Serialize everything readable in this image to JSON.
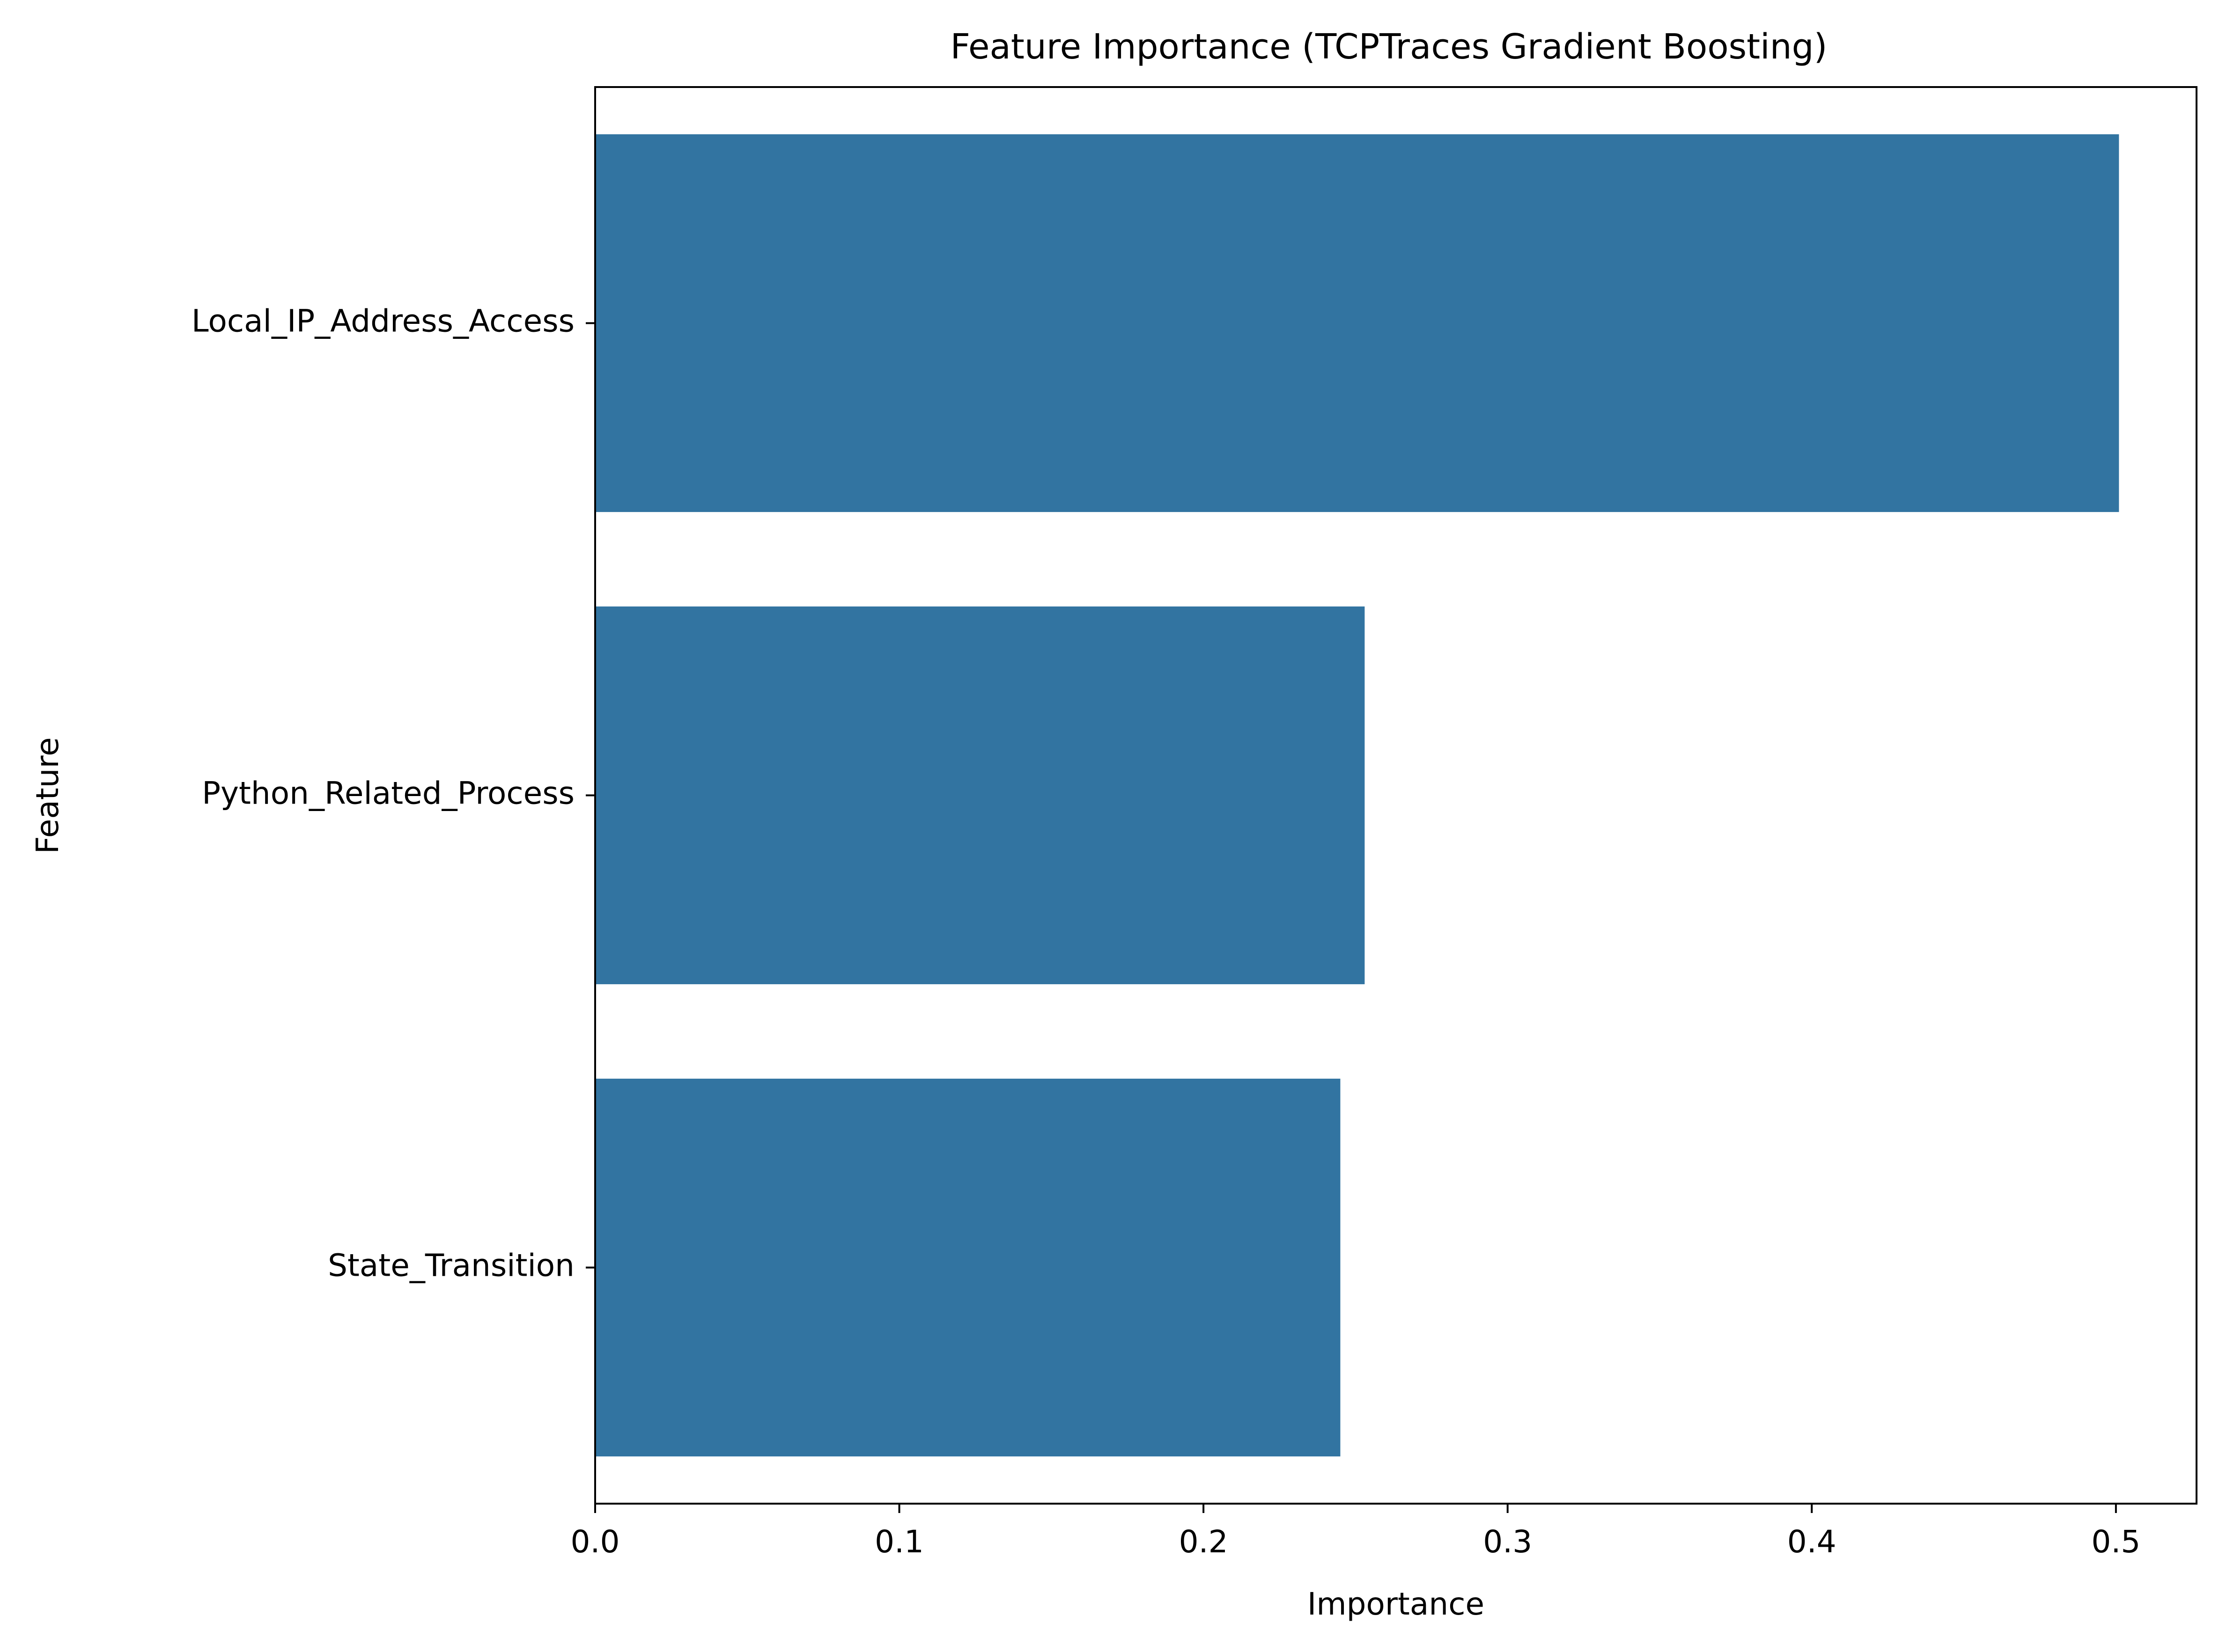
{
  "chart_data": {
    "type": "bar",
    "orientation": "horizontal",
    "title": "Feature Importance (TCPTraces Gradient Boosting)",
    "xlabel": "Importance",
    "ylabel": "Feature",
    "categories": [
      "Local_IP_Address_Access",
      "Python_Related_Process",
      "State_Transition"
    ],
    "values": [
      0.501,
      0.253,
      0.245
    ],
    "xlim": [
      0,
      0.5265
    ],
    "xticks": [
      0.0,
      0.1,
      0.2,
      0.3,
      0.4,
      0.5
    ],
    "xtick_labels": [
      "0.0",
      "0.1",
      "0.2",
      "0.3",
      "0.4",
      "0.5"
    ],
    "grid": false,
    "bar_color": "#3274a1"
  }
}
